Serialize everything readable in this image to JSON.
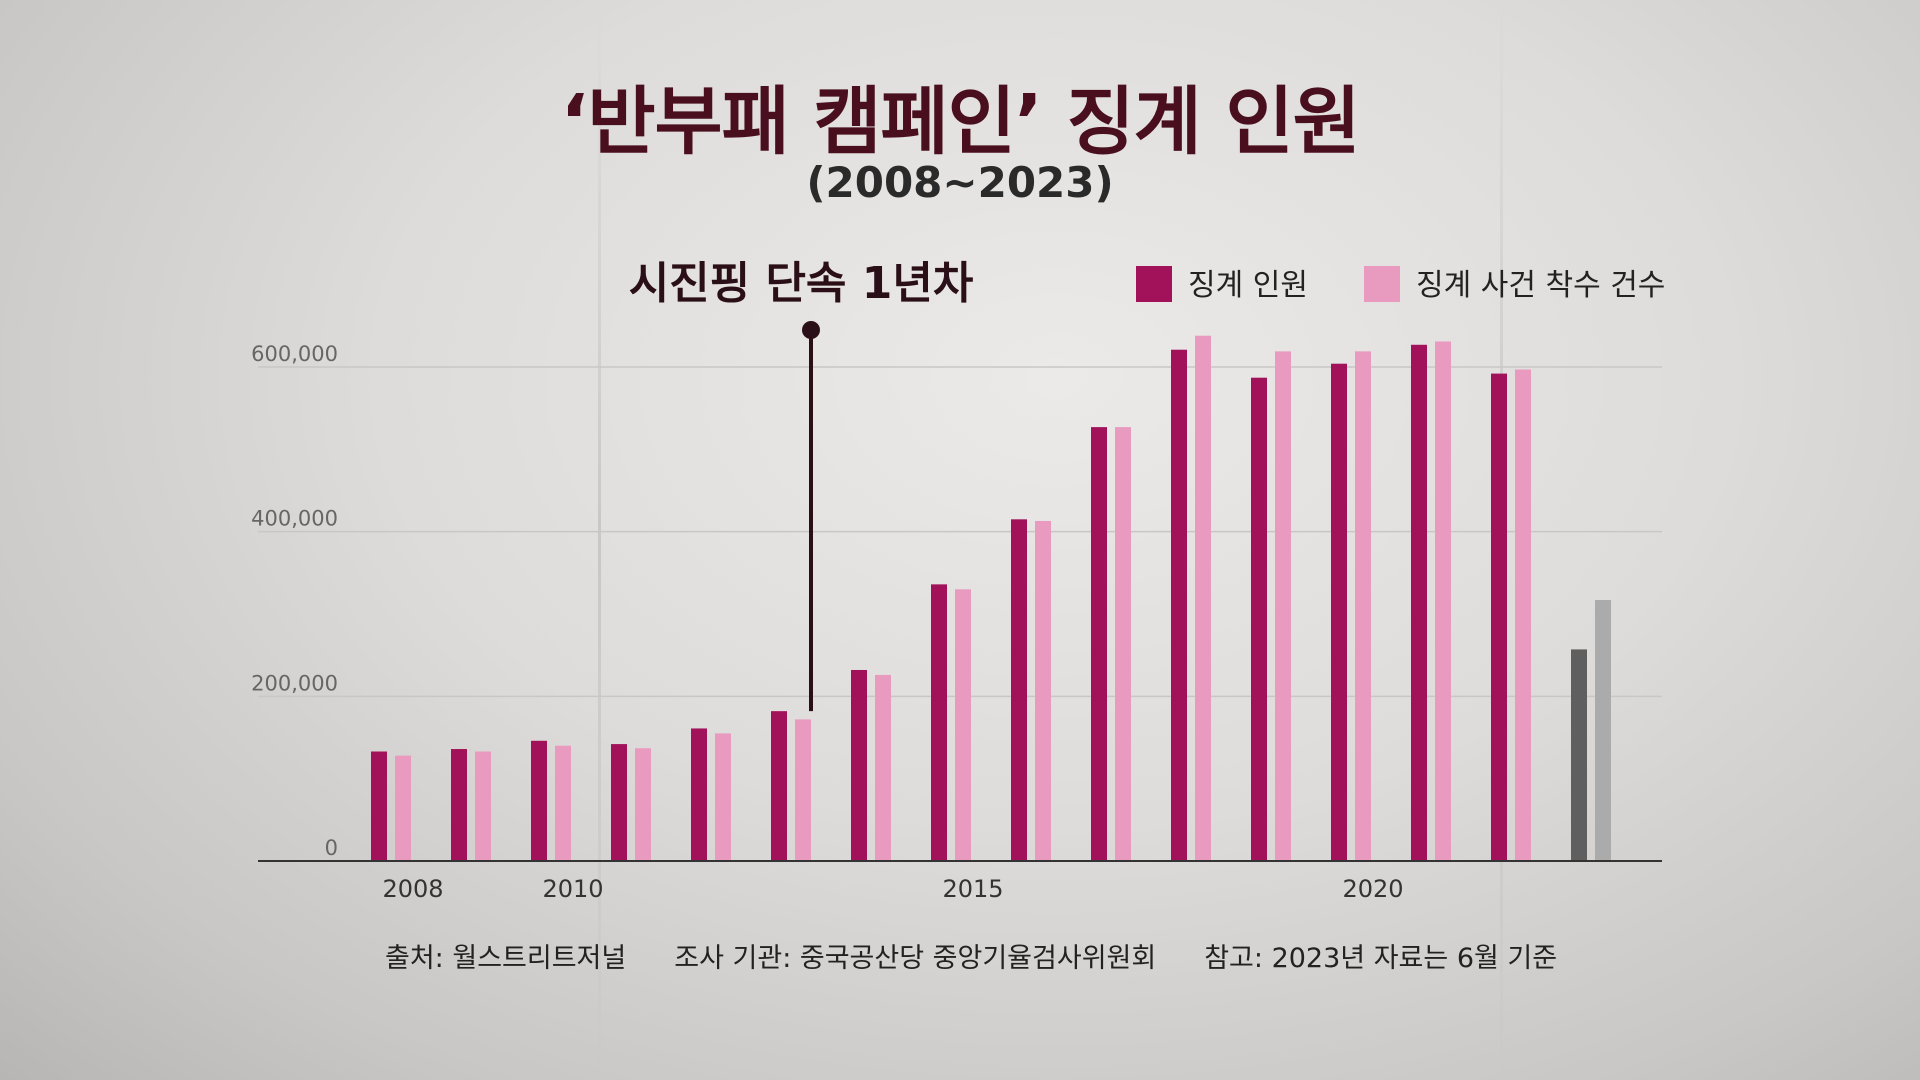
{
  "title": "‘반부패 캠페인’ 징계 인원",
  "subtitle": "(2008~2023)",
  "annotation": "시진핑 단속 1년차",
  "footer": {
    "source": "출처: 월스트리트저널",
    "agency": "조사 기관: 중국공산당 중앙기율검사위원회",
    "note": "참고: 2023년 자료는 6월 기준"
  },
  "colors": {
    "series1": "#a2125a",
    "series2": "#e89bbf",
    "partial1": "#5f5f5f",
    "partial2": "#ababab"
  },
  "chart_data": {
    "type": "bar",
    "categories": [
      "2008",
      "2009",
      "2010",
      "2011",
      "2012",
      "2013",
      "2014",
      "2015",
      "2016",
      "2017",
      "2018",
      "2019",
      "2020",
      "2021",
      "2022",
      "2023"
    ],
    "series": [
      {
        "name": "징계 인원",
        "values": [
          133000,
          136000,
          146000,
          142000,
          161000,
          182000,
          232000,
          336000,
          415000,
          527000,
          621000,
          587000,
          604000,
          627000,
          592000,
          257000
        ]
      },
      {
        "name": "징계 사건 착수 건수",
        "values": [
          128000,
          133000,
          140000,
          137000,
          155000,
          172000,
          226000,
          330000,
          413000,
          527000,
          638000,
          619000,
          619000,
          631000,
          597000,
          317000
        ]
      }
    ],
    "x_tick_labels": [
      "2008",
      "2010",
      "2015",
      "2020"
    ],
    "y_tick_labels": [
      "0",
      "200,000",
      "400,000",
      "600,000"
    ],
    "ylim": [
      0,
      600000
    ],
    "annotation_year": "2013",
    "grid": true,
    "legend_position": "top-right"
  }
}
